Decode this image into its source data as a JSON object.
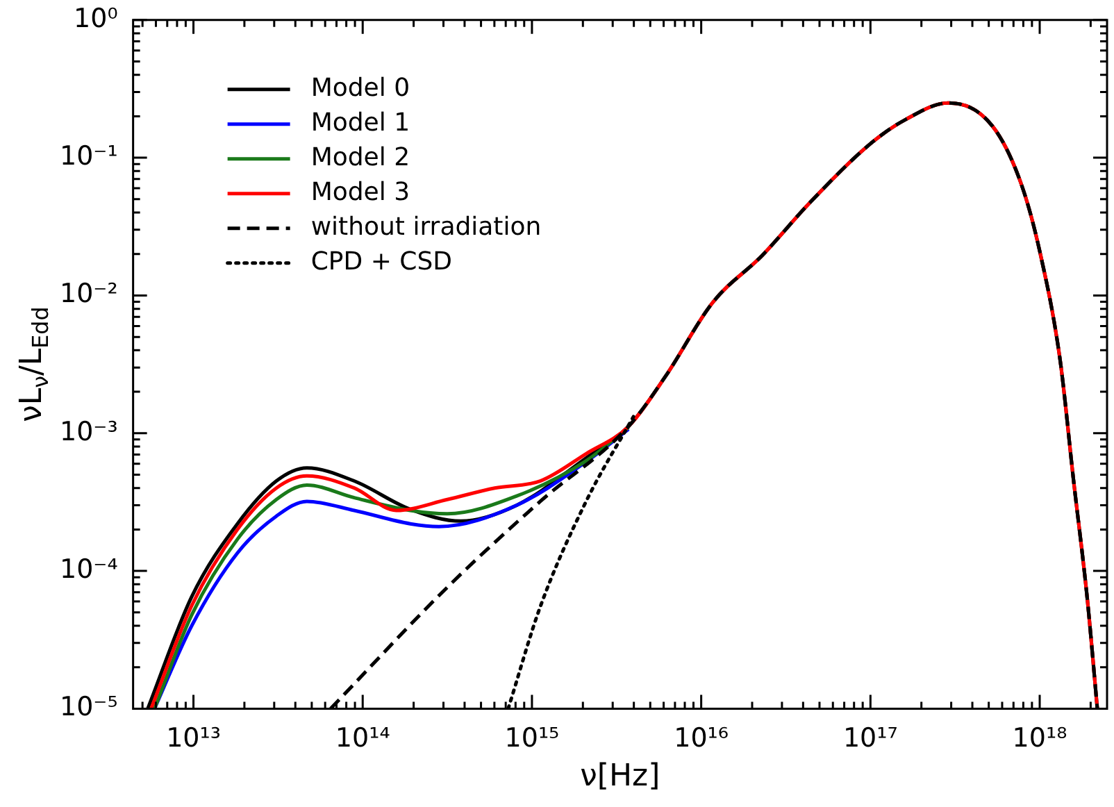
{
  "chart_data": {
    "type": "line",
    "xlabel": "ν[Hz]",
    "ylabel": "νL$_{ν}$/L$_{Edd}$",
    "log": "xy",
    "legend": "top left",
    "xlim": [
      4400000000000.0,
      2.5e+18
    ],
    "ylim": [
      1e-05,
      1
    ],
    "xticks": [
      {
        "value": 5000000000000.0,
        "label": null
      },
      {
        "value": 6000000000000.0,
        "label": null
      },
      {
        "value": 7000000000000.0,
        "label": null
      },
      {
        "value": 8000000000000.0,
        "label": null
      },
      {
        "value": 9000000000000.0,
        "label": null
      },
      {
        "value": 10000000000000.0,
        "label": "10¹³"
      },
      {
        "value": 20000000000000.0,
        "label": null
      },
      {
        "value": 30000000000000.0,
        "label": null
      },
      {
        "value": 40000000000000.0,
        "label": null
      },
      {
        "value": 50000000000000.0,
        "label": null
      },
      {
        "value": 60000000000000.0,
        "label": null
      },
      {
        "value": 70000000000000.0,
        "label": null
      },
      {
        "value": 80000000000000.0,
        "label": null
      },
      {
        "value": 90000000000000.0,
        "label": null
      },
      {
        "value": 100000000000000.0,
        "label": "10¹⁴"
      },
      {
        "value": 200000000000000.0,
        "label": null
      },
      {
        "value": 300000000000000.0,
        "label": null
      },
      {
        "value": 400000000000000.0,
        "label": null
      },
      {
        "value": 500000000000000.0,
        "label": null
      },
      {
        "value": 600000000000000.0,
        "label": null
      },
      {
        "value": 700000000000000.0,
        "label": null
      },
      {
        "value": 800000000000000.0,
        "label": null
      },
      {
        "value": 900000000000000.0,
        "label": null
      },
      {
        "value": 1000000000000000.0,
        "label": "10¹⁵"
      },
      {
        "value": 2000000000000000.0,
        "label": null
      },
      {
        "value": 3000000000000000.0,
        "label": null
      },
      {
        "value": 4000000000000000.0,
        "label": null
      },
      {
        "value": 5000000000000000.0,
        "label": null
      },
      {
        "value": 6000000000000000.0,
        "label": null
      },
      {
        "value": 7000000000000000.0,
        "label": null
      },
      {
        "value": 8000000000000000.0,
        "label": null
      },
      {
        "value": 9000000000000000.0,
        "label": null
      },
      {
        "value": 1e+16,
        "label": "10¹⁶"
      },
      {
        "value": 2e+16,
        "label": null
      },
      {
        "value": 3e+16,
        "label": null
      },
      {
        "value": 4e+16,
        "label": null
      },
      {
        "value": 5e+16,
        "label": null
      },
      {
        "value": 6e+16,
        "label": null
      },
      {
        "value": 7e+16,
        "label": null
      },
      {
        "value": 8e+16,
        "label": null
      },
      {
        "value": 9e+16,
        "label": null
      },
      {
        "value": 1e+17,
        "label": "10¹⁷"
      },
      {
        "value": 2e+17,
        "label": null
      },
      {
        "value": 3e+17,
        "label": null
      },
      {
        "value": 4e+17,
        "label": null
      },
      {
        "value": 5e+17,
        "label": null
      },
      {
        "value": 6e+17,
        "label": null
      },
      {
        "value": 7e+17,
        "label": null
      },
      {
        "value": 8e+17,
        "label": null
      },
      {
        "value": 9e+17,
        "label": null
      },
      {
        "value": 1e+18,
        "label": "10¹⁸"
      },
      {
        "value": 2e+18,
        "label": null
      }
    ],
    "yticks": [
      {
        "value": 1e-05,
        "label": "10⁻⁵"
      },
      {
        "value": 2e-05,
        "label": null
      },
      {
        "value": 3e-05,
        "label": null
      },
      {
        "value": 4e-05,
        "label": null
      },
      {
        "value": 5e-05,
        "label": null
      },
      {
        "value": 6e-05,
        "label": null
      },
      {
        "value": 7e-05,
        "label": null
      },
      {
        "value": 8e-05,
        "label": null
      },
      {
        "value": 9e-05,
        "label": null
      },
      {
        "value": 0.0001,
        "label": "10⁻⁴"
      },
      {
        "value": 0.0002,
        "label": null
      },
      {
        "value": 0.0003,
        "label": null
      },
      {
        "value": 0.0004,
        "label": null
      },
      {
        "value": 0.0005,
        "label": null
      },
      {
        "value": 0.0006,
        "label": null
      },
      {
        "value": 0.0007,
        "label": null
      },
      {
        "value": 0.0008,
        "label": null
      },
      {
        "value": 0.0009,
        "label": null
      },
      {
        "value": 0.001,
        "label": "10⁻³"
      },
      {
        "value": 0.002,
        "label": null
      },
      {
        "value": 0.003,
        "label": null
      },
      {
        "value": 0.004,
        "label": null
      },
      {
        "value": 0.005,
        "label": null
      },
      {
        "value": 0.006,
        "label": null
      },
      {
        "value": 0.007,
        "label": null
      },
      {
        "value": 0.008,
        "label": null
      },
      {
        "value": 0.009,
        "label": null
      },
      {
        "value": 0.01,
        "label": "10⁻²"
      },
      {
        "value": 0.02,
        "label": null
      },
      {
        "value": 0.03,
        "label": null
      },
      {
        "value": 0.04,
        "label": null
      },
      {
        "value": 0.05,
        "label": null
      },
      {
        "value": 0.06,
        "label": null
      },
      {
        "value": 0.07,
        "label": null
      },
      {
        "value": 0.08,
        "label": null
      },
      {
        "value": 0.09,
        "label": null
      },
      {
        "value": 0.1,
        "label": "10⁻¹"
      },
      {
        "value": 0.2,
        "label": null
      },
      {
        "value": 0.3,
        "label": null
      },
      {
        "value": 0.4,
        "label": null
      },
      {
        "value": 0.5,
        "label": null
      },
      {
        "value": 0.6,
        "label": null
      },
      {
        "value": 0.7,
        "label": null
      },
      {
        "value": 0.8,
        "label": null
      },
      {
        "value": 0.9,
        "label": null
      },
      {
        "value": 1,
        "label": "10⁰"
      }
    ],
    "series": [
      {
        "name": "Model 0",
        "color": "#000000",
        "line_style": "solid",
        "x": [
          5370000000000.0,
          9770000000000.0,
          18200000000000.0,
          30900000000000.0,
          46800000000000.0,
          89100000000000.0,
          191000000000000.0,
          380000000000000.0,
          813000000000000.0,
          2090000000000000.0,
          3720000000000000.0,
          6170000000000000.0,
          1.17e+16,
          2.29e+16,
          4.37e+16,
          1.02e+17,
          1.62e+17,
          2.88e+17,
          5.25e+17,
          7.76e+17,
          1e+18,
          1.32e+18,
          1.58e+18,
          1.91e+18,
          2.19e+18
        ],
        "values": [
          1e-05,
          6.5e-05,
          0.00022,
          0.00045,
          0.00056,
          0.00045,
          0.00028,
          0.00023,
          0.0003,
          0.00066,
          0.00112,
          0.0026,
          0.0089,
          0.0195,
          0.047,
          0.129,
          0.19,
          0.25,
          0.17,
          0.065,
          0.021,
          0.0034,
          0.00047,
          6.3e-05,
          1e-05
        ]
      },
      {
        "name": "Model 1",
        "color": "#0000ff",
        "line_style": "solid",
        "x": [
          5890000000000.0,
          9770000000000.0,
          18200000000000.0,
          30900000000000.0,
          46800000000000.0,
          89100000000000.0,
          191000000000000.0,
          282000000000000.0,
          813000000000000.0,
          2090000000000000.0,
          3720000000000000.0
        ],
        "values": [
          1e-05,
          4e-05,
          0.000135,
          0.00025,
          0.00032,
          0.000275,
          0.00022,
          0.00021,
          0.0003,
          0.00062,
          0.00107
        ]
      },
      {
        "name": "Model 2",
        "color": "#1a7a1a",
        "line_style": "solid",
        "x": [
          5890000000000.0,
          9770000000000.0,
          18200000000000.0,
          30900000000000.0,
          46800000000000.0,
          89100000000000.0,
          191000000000000.0,
          316000000000000.0,
          813000000000000.0,
          2090000000000000.0,
          3720000000000000.0
        ],
        "values": [
          1e-05,
          4.8e-05,
          0.00017,
          0.00033,
          0.00042,
          0.00034,
          0.000275,
          0.00026,
          0.00035,
          0.00063,
          0.0011
        ]
      },
      {
        "name": "Model 3",
        "color": "#ff0000",
        "line_style": "solid",
        "x": [
          5620000000000.0,
          9770000000000.0,
          18200000000000.0,
          30900000000000.0,
          46800000000000.0,
          89100000000000.0,
          158000000000000.0,
          316000000000000.0,
          603000000000000.0,
          1120000000000000.0,
          2090000000000000.0,
          3720000000000000.0,
          6170000000000000.0,
          1.17e+16,
          2.29e+16,
          4.37e+16,
          1.02e+17,
          1.62e+17,
          2.88e+17,
          5.25e+17,
          7.76e+17,
          1e+18,
          1.32e+18,
          1.58e+18,
          1.91e+18,
          2.19e+18
        ],
        "values": [
          1e-05,
          5.6e-05,
          0.0002,
          0.0004,
          0.00049,
          0.0004,
          0.000275,
          0.00033,
          0.0004,
          0.00045,
          0.00071,
          0.00112,
          0.0026,
          0.0089,
          0.0195,
          0.047,
          0.129,
          0.19,
          0.25,
          0.17,
          0.065,
          0.021,
          0.0034,
          0.00047,
          6.3e-05,
          1e-05
        ]
      },
      {
        "name": "without irradiation",
        "color": "#000000",
        "line_style": "dashed",
        "x": [
          64600000000000.0,
          316000000000000.0,
          1120000000000000.0,
          3720000000000000.0,
          6170000000000000.0,
          1.17e+16,
          2.29e+16,
          4.37e+16,
          1.02e+17,
          1.62e+17,
          2.88e+17,
          5.25e+17,
          7.76e+17,
          1e+18,
          1.32e+18,
          1.58e+18,
          1.91e+18,
          2.19e+18
        ],
        "values": [
          1e-05,
          7.6e-05,
          0.00032,
          0.00112,
          0.0026,
          0.0089,
          0.0195,
          0.047,
          0.129,
          0.19,
          0.25,
          0.17,
          0.065,
          0.021,
          0.0034,
          0.00047,
          6.3e-05,
          1e-05
        ]
      },
      {
        "name": "CPD + CSD",
        "color": "#000000",
        "line_style": "dotted",
        "x": [
          724000000000000.0,
          1120000000000000.0,
          2090000000000000.0,
          3980000000000000.0
        ],
        "values": [
          1e-05,
          5.5e-05,
          0.00032,
          0.00132
        ]
      }
    ]
  }
}
